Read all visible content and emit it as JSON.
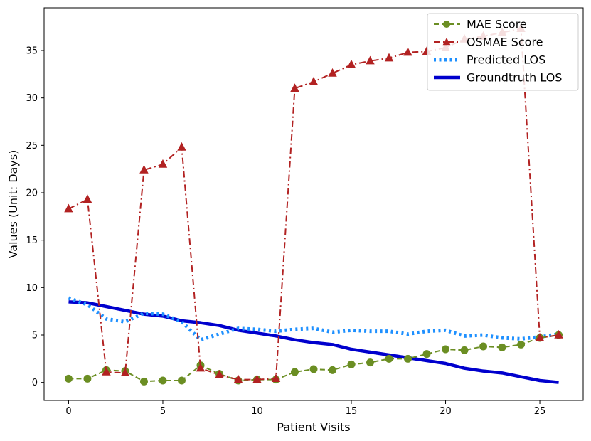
{
  "chart_data": {
    "type": "line",
    "title": "",
    "xlabel": "Patient Visits",
    "ylabel": "Values (Unit: Days)",
    "xlim": [
      -1.3,
      27.3
    ],
    "ylim": [
      -1.9,
      39.5
    ],
    "xticks": [
      0,
      5,
      10,
      15,
      20,
      25
    ],
    "yticks": [
      0,
      5,
      10,
      15,
      20,
      25,
      30,
      35
    ],
    "grid": false,
    "legend_position": "top-right",
    "x": [
      0,
      1,
      2,
      3,
      4,
      5,
      6,
      7,
      8,
      9,
      10,
      11,
      12,
      13,
      14,
      15,
      16,
      17,
      18,
      19,
      20,
      21,
      22,
      23,
      24,
      25,
      26
    ],
    "series": [
      {
        "name": "MAE Score",
        "color": "#6b8e23",
        "style": "dashed",
        "marker": "circle",
        "values": [
          0.4,
          0.4,
          1.3,
          1.2,
          0.1,
          0.2,
          0.2,
          1.8,
          0.9,
          0.2,
          0.3,
          0.3,
          1.1,
          1.4,
          1.3,
          1.9,
          2.1,
          2.5,
          2.5,
          3.0,
          3.5,
          3.4,
          3.8,
          3.7,
          4.0,
          4.7,
          5.0
        ]
      },
      {
        "name": "OSMAE Score",
        "color": "#b22222",
        "style": "dashdot",
        "marker": "triangle",
        "values": [
          18.3,
          19.3,
          1.1,
          1.0,
          22.4,
          23.0,
          24.8,
          1.5,
          0.8,
          0.3,
          0.3,
          0.4,
          31.0,
          31.7,
          32.6,
          33.5,
          33.9,
          34.2,
          34.8,
          34.9,
          35.3,
          36.2,
          36.5,
          36.9,
          37.3,
          4.7,
          5.0
        ]
      },
      {
        "name": "Predicted LOS",
        "color": "#1e90ff",
        "style": "dotted",
        "marker": "none",
        "values": [
          8.9,
          8.2,
          6.7,
          6.4,
          7.3,
          7.2,
          6.4,
          4.5,
          5.1,
          5.7,
          5.6,
          5.4,
          5.6,
          5.7,
          5.3,
          5.5,
          5.4,
          5.4,
          5.1,
          5.4,
          5.5,
          4.9,
          5.0,
          4.7,
          4.6,
          4.8,
          5.1
        ]
      },
      {
        "name": "Groundtruth LOS",
        "color": "#0000cd",
        "style": "solid",
        "marker": "none",
        "values": [
          8.5,
          8.4,
          8.0,
          7.6,
          7.2,
          7.0,
          6.5,
          6.3,
          6.0,
          5.5,
          5.2,
          4.9,
          4.5,
          4.2,
          4.0,
          3.5,
          3.2,
          2.9,
          2.6,
          2.3,
          2.0,
          1.5,
          1.2,
          1.0,
          0.6,
          0.2,
          0.0
        ]
      }
    ]
  }
}
